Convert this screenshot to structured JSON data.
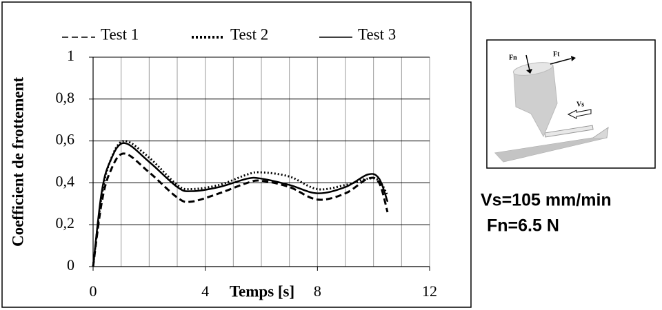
{
  "chart_data": {
    "type": "line",
    "xlabel": "Temps [s]",
    "ylabel": "Coefficient de frottement",
    "x": [
      0,
      0.3,
      0.6,
      1.1,
      2,
      3,
      3.5,
      4.5,
      5.5,
      6,
      7,
      8,
      9,
      9.8,
      10.2,
      10.5
    ],
    "series": [
      {
        "name": "Test 1",
        "color": "#000000",
        "style": "dashed",
        "values": [
          0,
          0.3,
          0.45,
          0.54,
          0.45,
          0.33,
          0.31,
          0.35,
          0.4,
          0.41,
          0.38,
          0.32,
          0.35,
          0.42,
          0.4,
          0.26
        ]
      },
      {
        "name": "Test 2",
        "color": "#000000",
        "style": "dotted",
        "values": [
          0,
          0.33,
          0.5,
          0.6,
          0.52,
          0.39,
          0.37,
          0.39,
          0.44,
          0.45,
          0.43,
          0.37,
          0.39,
          0.42,
          0.41,
          0.34
        ]
      },
      {
        "name": "Test 3",
        "color": "#000000",
        "style": "solid",
        "values": [
          0,
          0.35,
          0.5,
          0.59,
          0.5,
          0.38,
          0.36,
          0.38,
          0.42,
          0.42,
          0.39,
          0.35,
          0.38,
          0.44,
          0.42,
          0.31
        ]
      }
    ],
    "xlim": [
      0,
      12
    ],
    "xticks": [
      0,
      4,
      8,
      12
    ],
    "xgrid": [
      0,
      1,
      2,
      3,
      4,
      5,
      6,
      7,
      8,
      9,
      10,
      11,
      12
    ],
    "ylim": [
      0,
      1
    ],
    "yticks": [
      0,
      {
        "value": 0.2,
        "label": "0,2"
      },
      {
        "value": 0.4,
        "label": "0,4"
      },
      {
        "value": 0.6,
        "label": "0,6"
      },
      {
        "value": 0.8,
        "label": "0,8"
      },
      1
    ],
    "grid": true,
    "legend": "top"
  },
  "diagram": {
    "labels": {
      "fn": "Fn",
      "ft": "Ft",
      "vs": "Vs"
    },
    "conditions": [
      "Vs=105 mm/min",
      "Fn=6.5 N"
    ]
  }
}
